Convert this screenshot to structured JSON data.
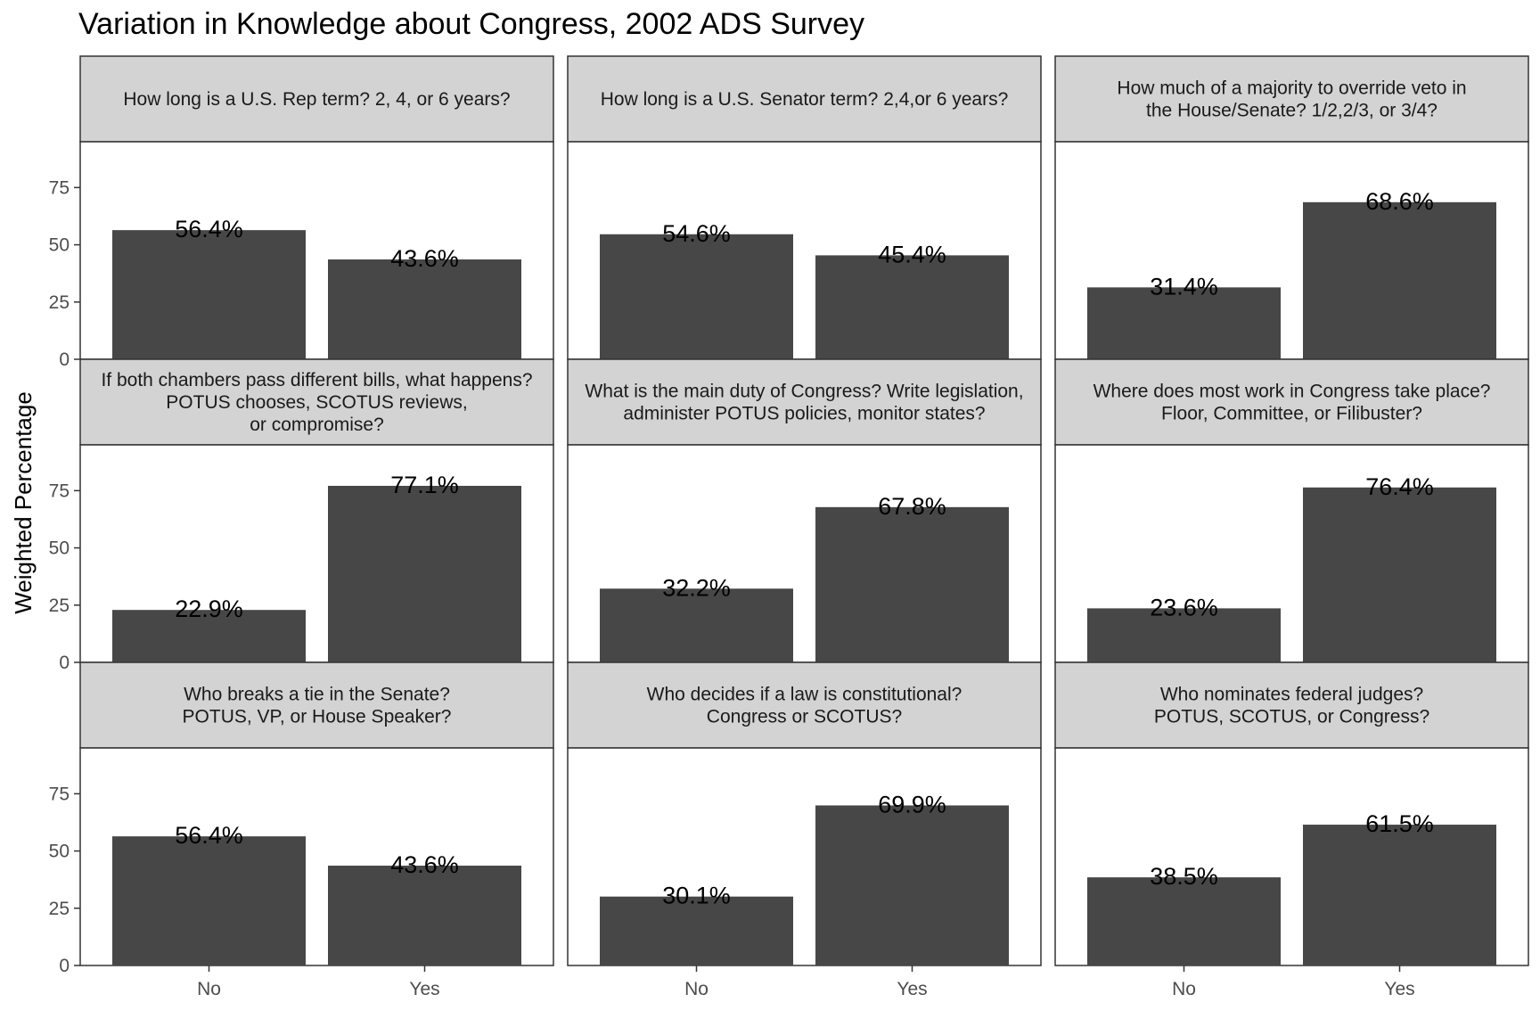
{
  "chart_data": {
    "type": "bar",
    "title": "Variation in Knowledge about Congress, 2002 ADS Survey",
    "ylabel": "Weighted Percentage",
    "xlabel": "",
    "categories": [
      "No",
      "Yes"
    ],
    "ylim": [
      0,
      95
    ],
    "yticks": [
      0,
      25,
      50,
      75
    ],
    "bar_color": "#474747",
    "strip_color": "#d3d3d3",
    "grid": false,
    "legend": "none",
    "facets": [
      {
        "question": [
          "How long is a U.S. Rep term? 2, 4, or 6 years?"
        ],
        "values": [
          56.4,
          43.6
        ],
        "labels": [
          "56.4%",
          "43.6%"
        ]
      },
      {
        "question": [
          "How long is a U.S. Senator term? 2,4,or 6 years?"
        ],
        "values": [
          54.6,
          45.4
        ],
        "labels": [
          "54.6%",
          "45.4%"
        ]
      },
      {
        "question": [
          "How much of a majority to override veto in",
          "the House/Senate? 1/2,2/3, or 3/4?"
        ],
        "values": [
          31.4,
          68.6
        ],
        "labels": [
          "31.4%",
          "68.6%"
        ]
      },
      {
        "question": [
          "If both chambers pass different bills, what happens?",
          "POTUS chooses, SCOTUS reviews,",
          "or compromise?"
        ],
        "values": [
          22.9,
          77.1
        ],
        "labels": [
          "22.9%",
          "77.1%"
        ]
      },
      {
        "question": [
          "What is the main duty of Congress? Write legislation,",
          "administer POTUS policies, monitor states?"
        ],
        "values": [
          32.2,
          67.8
        ],
        "labels": [
          "32.2%",
          "67.8%"
        ]
      },
      {
        "question": [
          "Where does most work in Congress take place?",
          "Floor, Committee, or Filibuster?"
        ],
        "values": [
          23.6,
          76.4
        ],
        "labels": [
          "23.6%",
          "76.4%"
        ]
      },
      {
        "question": [
          "Who breaks a tie in the Senate?",
          "POTUS, VP, or House Speaker?"
        ],
        "values": [
          56.4,
          43.6
        ],
        "labels": [
          "56.4%",
          "43.6%"
        ]
      },
      {
        "question": [
          "Who decides if a law is constitutional?",
          "Congress or SCOTUS?"
        ],
        "values": [
          30.1,
          69.9
        ],
        "labels": [
          "30.1%",
          "69.9%"
        ]
      },
      {
        "question": [
          "Who nominates federal judges?",
          "POTUS, SCOTUS, or Congress?"
        ],
        "values": [
          38.5,
          61.5
        ],
        "labels": [
          "38.5%",
          "61.5%"
        ]
      }
    ]
  }
}
